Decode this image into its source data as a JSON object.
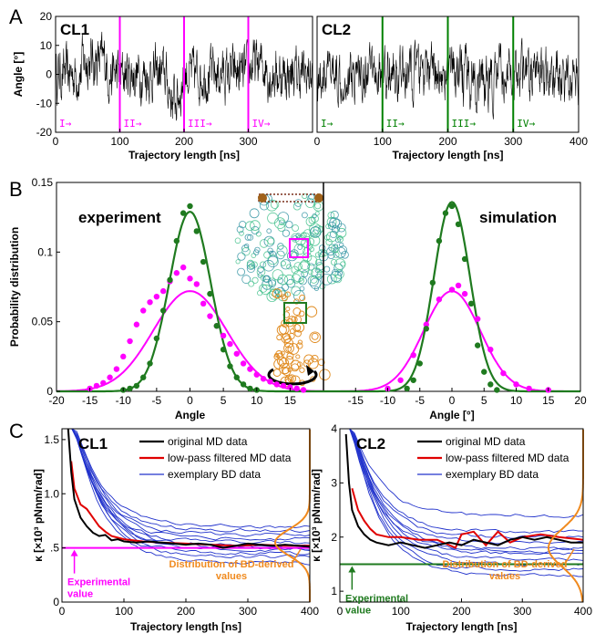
{
  "panel_letters": [
    "A",
    "B",
    "C"
  ],
  "chart_data": [
    {
      "id": "A1",
      "type": "line",
      "title": "CL1",
      "xlabel": "Trajectory length [ns]",
      "ylabel": "Angle [°]",
      "xlim": [
        0,
        400
      ],
      "ylim": [
        -20,
        20
      ],
      "xticks": [
        0,
        100,
        200,
        300
      ],
      "yticks": [
        -20,
        -10,
        0,
        10,
        20
      ],
      "color": "#000000",
      "boundaries": [
        100,
        200,
        300
      ],
      "boundary_color": "#ff00ff",
      "segment_labels": [
        "I→",
        "II→",
        "III→",
        "IV→"
      ]
    },
    {
      "id": "A2",
      "type": "line",
      "title": "CL2",
      "xlabel": "Trajectory length [ns]",
      "xlim": [
        0,
        400
      ],
      "ylim": [
        -20,
        20
      ],
      "xticks": [
        0,
        100,
        200,
        300,
        400
      ],
      "color": "#000000",
      "boundaries": [
        100,
        200,
        300
      ],
      "boundary_color": "#008000",
      "segment_labels": [
        "I→",
        "II→",
        "III→",
        "IV→"
      ]
    },
    {
      "id": "B",
      "type": "scatter",
      "ylabel": "Probability distribution",
      "left": {
        "label": "experiment",
        "xlabel": "Angle",
        "xlim": [
          -20,
          20
        ],
        "xticks": [
          -20,
          -15,
          -10,
          -5,
          0,
          5,
          10,
          15
        ],
        "points_green": [
          [
            -10,
            0.001
          ],
          [
            -9,
            0.002
          ],
          [
            -8,
            0.004
          ],
          [
            -7,
            0.01
          ],
          [
            -6,
            0.02
          ],
          [
            -5,
            0.038
          ],
          [
            -4,
            0.058
          ],
          [
            -3,
            0.08
          ],
          [
            -2,
            0.108
          ],
          [
            -1,
            0.128
          ],
          [
            0,
            0.133
          ],
          [
            1,
            0.115
          ],
          [
            2,
            0.093
          ],
          [
            3,
            0.07
          ],
          [
            4,
            0.047
          ],
          [
            5,
            0.03
          ],
          [
            6,
            0.018
          ],
          [
            7,
            0.01
          ],
          [
            8,
            0.005
          ],
          [
            9,
            0.002
          ],
          [
            10,
            0.001
          ]
        ],
        "points_magenta": [
          [
            -15,
            0.002
          ],
          [
            -14,
            0.004
          ],
          [
            -13,
            0.006
          ],
          [
            -12,
            0.01
          ],
          [
            -11,
            0.016
          ],
          [
            -10,
            0.025
          ],
          [
            -9,
            0.036
          ],
          [
            -8,
            0.048
          ],
          [
            -7,
            0.058
          ],
          [
            -6,
            0.064
          ],
          [
            -5,
            0.068
          ],
          [
            -4,
            0.072
          ],
          [
            -3,
            0.079
          ],
          [
            -2,
            0.085
          ],
          [
            -1,
            0.089
          ],
          [
            0,
            0.081
          ],
          [
            1,
            0.077
          ],
          [
            2,
            0.063
          ],
          [
            3,
            0.054
          ],
          [
            4,
            0.047
          ],
          [
            5,
            0.04
          ],
          [
            6,
            0.034
          ],
          [
            7,
            0.027
          ],
          [
            8,
            0.02
          ],
          [
            9,
            0.016
          ],
          [
            10,
            0.012
          ],
          [
            11,
            0.009
          ],
          [
            12,
            0.007
          ],
          [
            13,
            0.005
          ],
          [
            14,
            0.004
          ],
          [
            15,
            0.003
          ],
          [
            16,
            0.002
          ],
          [
            17,
            0.001
          ]
        ],
        "fit_green": {
          "mu": 0,
          "sigma": 3.1,
          "amp": 0.129
        },
        "fit_magenta": {
          "mu": 0,
          "sigma": 5.5,
          "amp": 0.072
        }
      },
      "right": {
        "label": "simulation",
        "xlabel": "Angle [°]",
        "xlim": [
          -20,
          20
        ],
        "xticks": [
          -15,
          -10,
          -5,
          0,
          5,
          10,
          15,
          20
        ],
        "points_green": [
          [
            -7,
            0.002
          ],
          [
            -6,
            0.008
          ],
          [
            -5,
            0.02
          ],
          [
            -4,
            0.045
          ],
          [
            -3,
            0.078
          ],
          [
            -2,
            0.108
          ],
          [
            -1,
            0.128
          ],
          [
            0,
            0.133
          ],
          [
            1,
            0.12
          ],
          [
            2,
            0.095
          ],
          [
            3,
            0.063
          ],
          [
            4,
            0.033
          ],
          [
            5,
            0.014
          ],
          [
            6,
            0.005
          ],
          [
            7,
            0.001
          ]
        ],
        "points_magenta": [
          [
            -10,
            0.002
          ],
          [
            -8,
            0.008
          ],
          [
            -6,
            0.026
          ],
          [
            -4,
            0.048
          ],
          [
            -2,
            0.066
          ],
          [
            0,
            0.073
          ],
          [
            1,
            0.076
          ],
          [
            2,
            0.07
          ],
          [
            4,
            0.052
          ],
          [
            6,
            0.03
          ],
          [
            8,
            0.013
          ],
          [
            10,
            0.005
          ],
          [
            12,
            0.002
          ],
          [
            15,
            0.001
          ]
        ],
        "fit_green": {
          "mu": 0,
          "sigma": 2.8,
          "amp": 0.136
        },
        "fit_magenta": {
          "mu": 0,
          "sigma": 4.4,
          "amp": 0.072
        }
      },
      "ylim": [
        0,
        0.15
      ],
      "yticks": [
        0,
        0.05,
        0.1,
        0.15
      ],
      "colors": {
        "green": "#1f7a1f",
        "magenta": "#ff00ff"
      }
    },
    {
      "id": "C1",
      "type": "line",
      "title": "CL1",
      "xlabel": "Trajectory length [ns]",
      "ylabel": "κ [×10³ pNnm/rad]",
      "xlim": [
        0,
        400
      ],
      "ylim": [
        0,
        1.6
      ],
      "xticks": [
        0,
        100,
        200,
        300,
        400
      ],
      "yticks": [
        0,
        0.5,
        1.0,
        1.5
      ],
      "ytick_labels": [
        "0",
        ".5",
        "1.0",
        "1.5"
      ],
      "experimental_value": 0.5,
      "experimental_color": "#ff00ff",
      "legend": [
        "original MD data",
        "low-pass filtered  MD data",
        "exemplary BD data"
      ],
      "legend_colors": [
        "#000000",
        "#e00000",
        "#2233cc"
      ],
      "ann_experimental": [
        "Experimental",
        "value"
      ],
      "ann_distribution": [
        "Distribution of BD-derived",
        "values"
      ],
      "md_original": [
        [
          10,
          1.6
        ],
        [
          15,
          1.2
        ],
        [
          20,
          0.95
        ],
        [
          30,
          0.78
        ],
        [
          40,
          0.7
        ],
        [
          50,
          0.64
        ],
        [
          60,
          0.61
        ],
        [
          70,
          0.62
        ],
        [
          80,
          0.57
        ],
        [
          90,
          0.58
        ],
        [
          100,
          0.56
        ],
        [
          120,
          0.55
        ],
        [
          140,
          0.56
        ],
        [
          160,
          0.55
        ],
        [
          180,
          0.54
        ],
        [
          200,
          0.53
        ],
        [
          220,
          0.54
        ],
        [
          240,
          0.53
        ],
        [
          260,
          0.5
        ],
        [
          280,
          0.52
        ],
        [
          300,
          0.54
        ],
        [
          320,
          0.53
        ],
        [
          340,
          0.52
        ],
        [
          360,
          0.53
        ],
        [
          380,
          0.52
        ],
        [
          400,
          0.51
        ]
      ],
      "md_filtered": [
        [
          15,
          1.3
        ],
        [
          20,
          1.05
        ],
        [
          30,
          0.9
        ],
        [
          40,
          0.86
        ],
        [
          50,
          0.78
        ],
        [
          60,
          0.7
        ],
        [
          70,
          0.65
        ],
        [
          80,
          0.61
        ],
        [
          100,
          0.58
        ],
        [
          130,
          0.56
        ],
        [
          160,
          0.55
        ],
        [
          200,
          0.54
        ],
        [
          240,
          0.53
        ],
        [
          280,
          0.52
        ],
        [
          320,
          0.53
        ],
        [
          360,
          0.52
        ],
        [
          400,
          0.52
        ]
      ],
      "bd_final": [
        0.36,
        0.42,
        0.45,
        0.48,
        0.5,
        0.52,
        0.55,
        0.58,
        0.62,
        0.66,
        0.7
      ],
      "bd_distribution": {
        "mu": 0.55,
        "sigma": 0.12
      }
    },
    {
      "id": "C2",
      "type": "line",
      "title": "CL2",
      "xlabel": "Trajectory length [ns]",
      "ylabel": "κ [×10³ pNnm/rad]",
      "xlim": [
        0,
        400
      ],
      "ylim": [
        0.8,
        4
      ],
      "xticks": [
        0,
        100,
        200,
        300,
        400
      ],
      "yticks": [
        1,
        2,
        3,
        4
      ],
      "experimental_value": 1.5,
      "experimental_color": "#1f7a1f",
      "legend": [
        "original MD data",
        "low-pass filtered  MD data",
        "exemplary BD data"
      ],
      "legend_colors": [
        "#000000",
        "#e00000",
        "#2233cc"
      ],
      "ann_experimental": [
        "Experimental",
        "value"
      ],
      "ann_distribution": [
        "Distribution of BD-derived",
        "values"
      ],
      "md_original": [
        [
          10,
          3.9
        ],
        [
          15,
          3.0
        ],
        [
          20,
          2.5
        ],
        [
          30,
          2.2
        ],
        [
          40,
          2.05
        ],
        [
          50,
          1.95
        ],
        [
          60,
          1.9
        ],
        [
          80,
          1.85
        ],
        [
          100,
          1.9
        ],
        [
          120,
          1.85
        ],
        [
          140,
          1.8
        ],
        [
          160,
          1.85
        ],
        [
          180,
          1.9
        ],
        [
          200,
          1.85
        ],
        [
          220,
          1.95
        ],
        [
          240,
          1.9
        ],
        [
          260,
          1.85
        ],
        [
          280,
          1.95
        ],
        [
          300,
          2.0
        ],
        [
          320,
          1.95
        ],
        [
          340,
          2.0
        ],
        [
          360,
          1.95
        ],
        [
          380,
          1.9
        ],
        [
          400,
          1.9
        ]
      ],
      "md_filtered": [
        [
          20,
          2.9
        ],
        [
          30,
          2.5
        ],
        [
          40,
          2.3
        ],
        [
          50,
          2.15
        ],
        [
          60,
          2.05
        ],
        [
          80,
          2.0
        ],
        [
          100,
          2.0
        ],
        [
          130,
          1.95
        ],
        [
          160,
          1.95
        ],
        [
          190,
          1.8
        ],
        [
          200,
          2.05
        ],
        [
          220,
          2.1
        ],
        [
          240,
          1.85
        ],
        [
          260,
          2.1
        ],
        [
          280,
          1.9
        ],
        [
          300,
          2.0
        ],
        [
          330,
          2.05
        ],
        [
          360,
          2.0
        ],
        [
          400,
          1.95
        ]
      ],
      "bd_final": [
        1.3,
        1.4,
        1.5,
        1.6,
        1.7,
        1.75,
        1.8,
        1.9,
        2.0,
        2.1,
        2.4
      ],
      "bd_distribution": {
        "mu": 1.8,
        "sigma": 0.35
      }
    }
  ]
}
